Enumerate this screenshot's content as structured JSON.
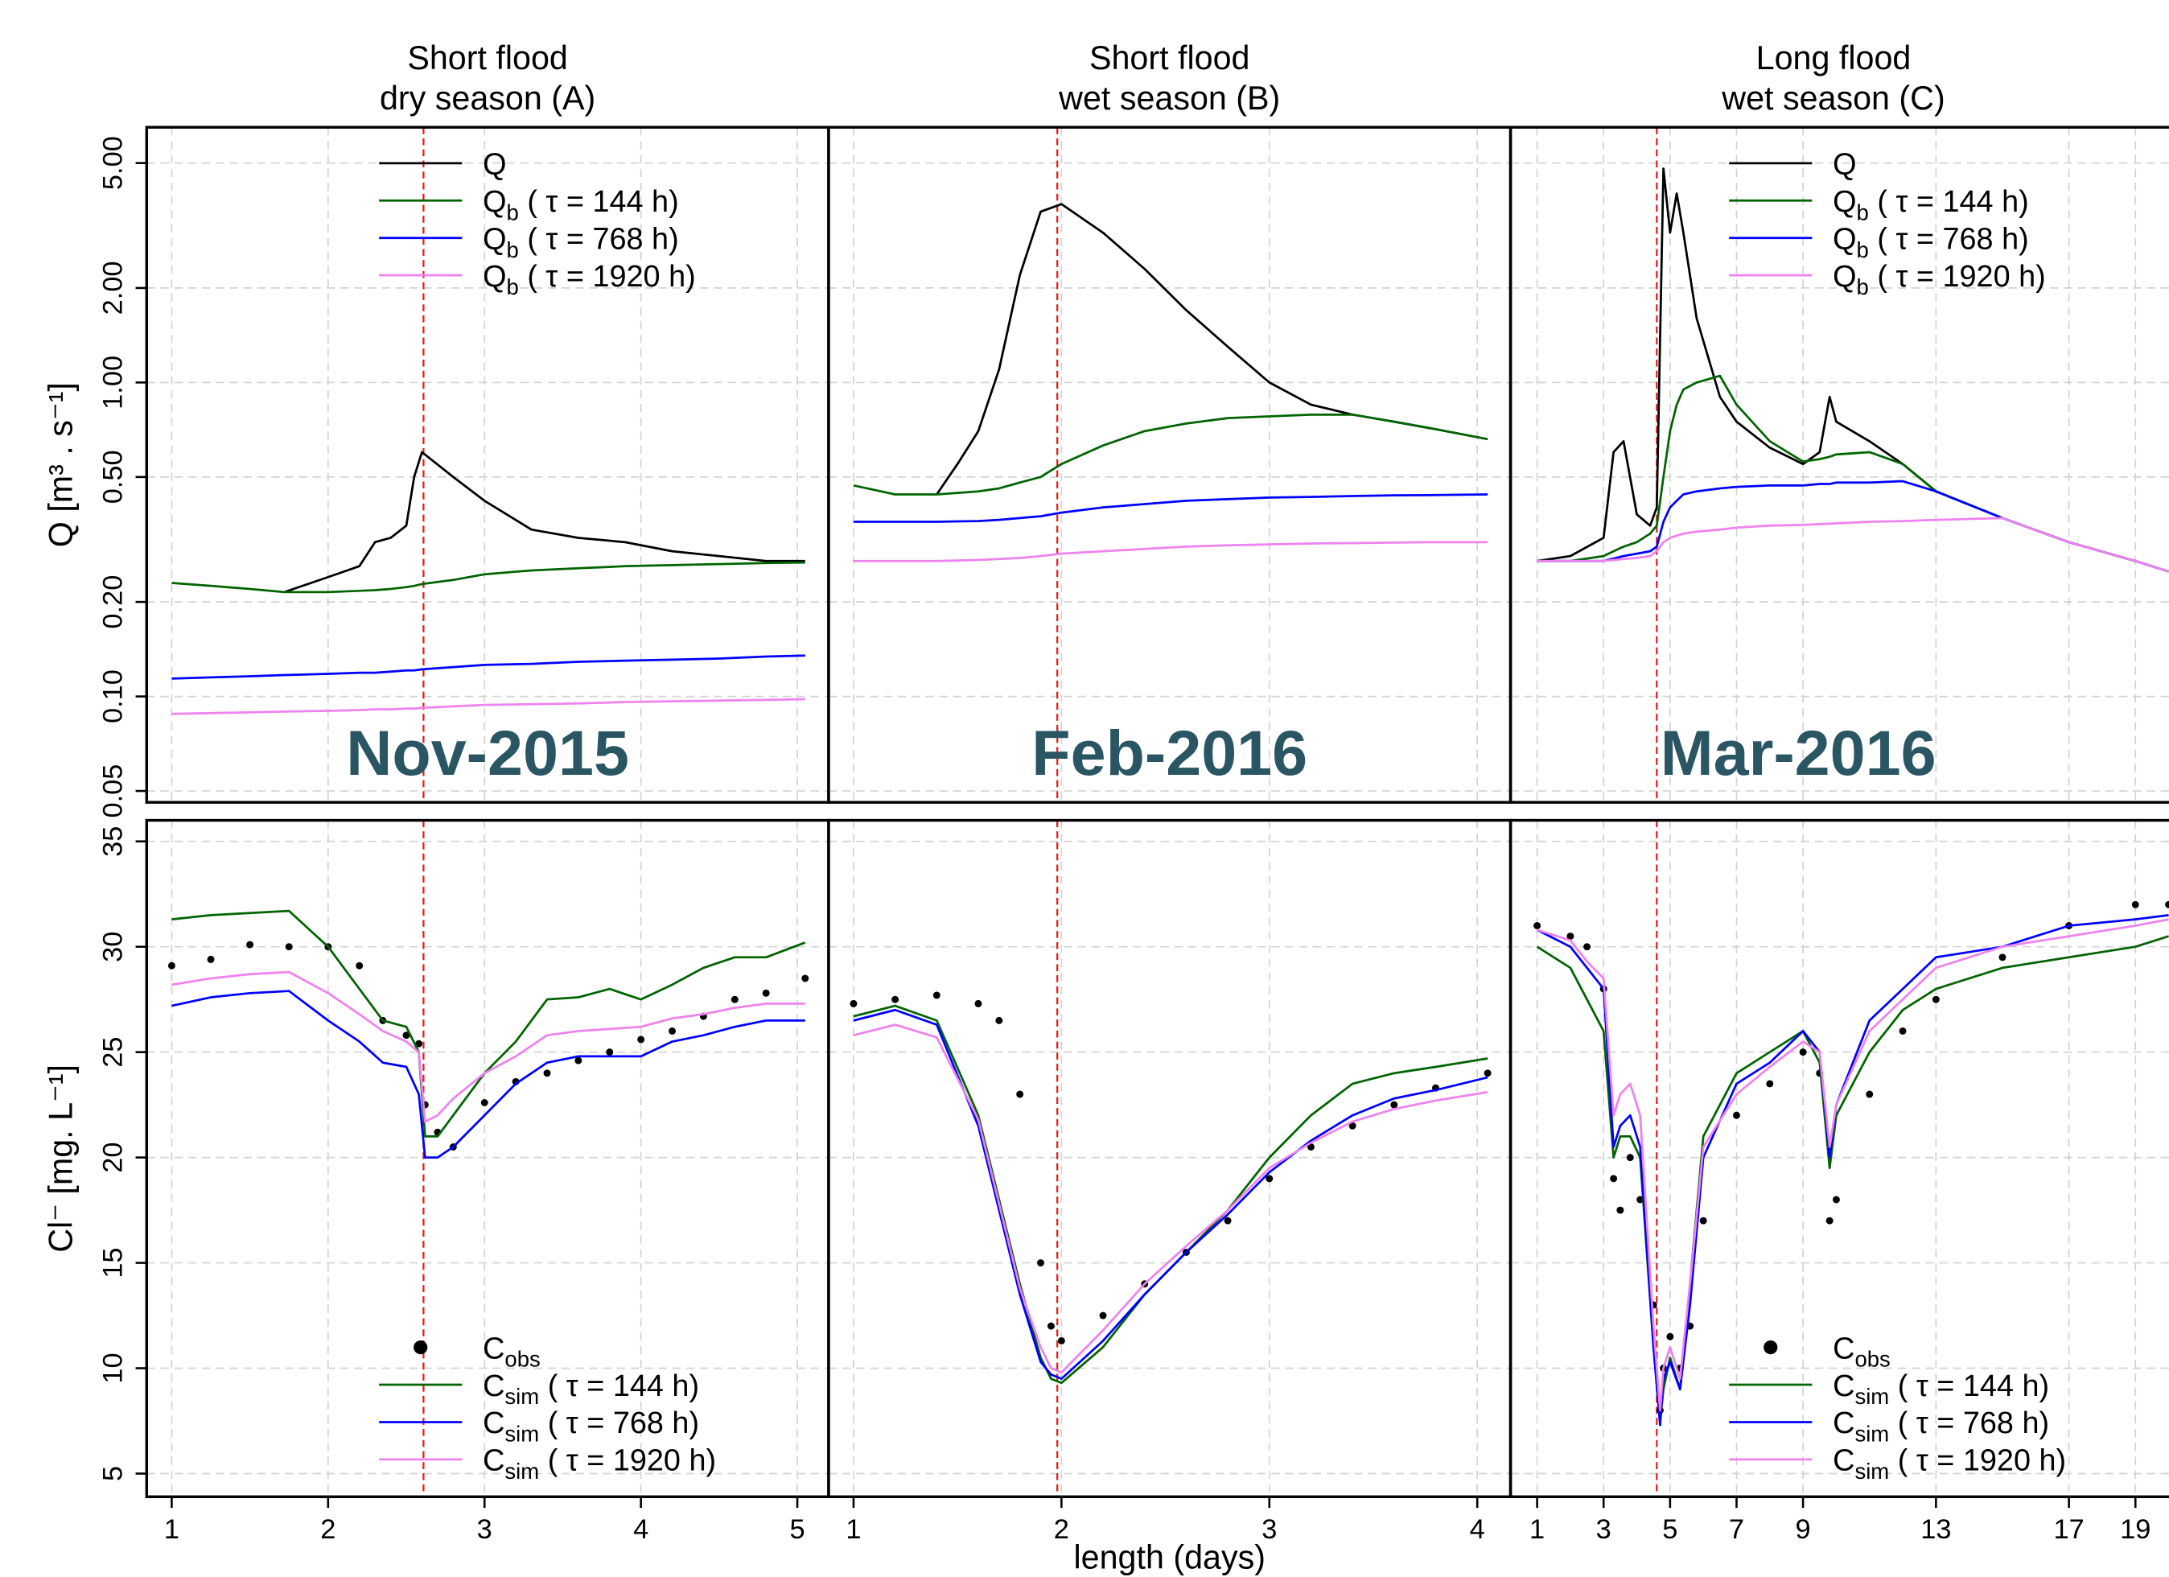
{
  "chart_data": [
    {
      "type": "line",
      "title": "Short flood",
      "subtitle": "dry season (A)",
      "annotation": "Nov-2015",
      "annotation_color": "#2a5563",
      "ylabel": "Q [m³ . s⁻¹]",
      "log_y": true,
      "grid": true,
      "legend": "top-right",
      "vline": 2.61,
      "vline_color": "#e41a1c",
      "xlim": [
        0.84,
        5.2
      ],
      "xticks": [
        1,
        2,
        3,
        4,
        5
      ],
      "xtick_labels": false,
      "ylim": [
        0.046,
        6.5
      ],
      "yticks": [
        0.05,
        {
          "value": 0.1,
          "label": "0.10"
        },
        {
          "value": 0.2,
          "label": "0.20"
        },
        {
          "value": 0.5,
          "label": "0.50"
        },
        {
          "value": 1,
          "label": "1.00"
        },
        {
          "value": 2,
          "label": "2.00"
        },
        {
          "value": 5,
          "label": "5.00"
        }
      ],
      "ytick_labels": true,
      "x": [
        1,
        1.25,
        1.5,
        1.72,
        2,
        2.2,
        2.3,
        2.4,
        2.5,
        2.55,
        2.6,
        2.8,
        3,
        3.3,
        3.6,
        3.9,
        4.2,
        4.5,
        4.8,
        5.05
      ],
      "series": [
        {
          "name": "Q",
          "color": "#000000",
          "values": [
            null,
            null,
            null,
            0.215,
            0.24,
            0.26,
            0.31,
            0.32,
            0.35,
            0.5,
            0.6,
            0.5,
            0.42,
            0.34,
            0.32,
            0.31,
            0.29,
            0.28,
            0.27,
            0.27
          ]
        },
        {
          "name": "Qb ( τ = 144 h)",
          "color": "#006400",
          "values": [
            0.23,
            0.225,
            0.22,
            0.215,
            0.215,
            0.217,
            0.218,
            0.22,
            0.223,
            0.225,
            0.228,
            0.235,
            0.245,
            0.252,
            0.256,
            0.26,
            0.262,
            0.264,
            0.266,
            0.267
          ]
        },
        {
          "name": "Qb ( τ = 768 h)",
          "color": "#0000ff",
          "values": [
            0.114,
            0.115,
            0.116,
            0.117,
            0.118,
            0.119,
            0.119,
            0.12,
            0.121,
            0.121,
            0.122,
            0.124,
            0.126,
            0.127,
            0.129,
            0.13,
            0.131,
            0.132,
            0.134,
            0.135
          ]
        },
        {
          "name": "Qb ( τ = 1920 h)",
          "color": "#ee82ee",
          "values": [
            0.088,
            0.0885,
            0.089,
            0.0895,
            0.09,
            0.0905,
            0.091,
            0.091,
            0.0915,
            0.0915,
            0.092,
            0.093,
            0.094,
            0.0945,
            0.095,
            0.096,
            0.0965,
            0.097,
            0.0975,
            0.098
          ]
        }
      ]
    },
    {
      "type": "line",
      "title": "Short flood",
      "subtitle": "wet season (B)",
      "annotation": "Feb-2016",
      "annotation_color": "#2a5563",
      "log_y": true,
      "grid": true,
      "legend": "none",
      "vline": 1.98,
      "vline_color": "#e41a1c",
      "xlim": [
        0.88,
        4.16
      ],
      "xticks": [
        1,
        2,
        3,
        4
      ],
      "xtick_labels": false,
      "ylim": [
        0.046,
        6.5
      ],
      "yticks": [
        0.05,
        0.1,
        0.2,
        0.5,
        1,
        2,
        5
      ],
      "ytick_labels": false,
      "x": [
        1,
        1.2,
        1.4,
        1.5,
        1.6,
        1.7,
        1.8,
        1.9,
        2,
        2.2,
        2.4,
        2.6,
        2.8,
        3,
        3.2,
        3.4,
        3.6,
        3.8,
        4.05
      ],
      "series": [
        {
          "name": "Q",
          "color": "#000000",
          "values": [
            null,
            null,
            0.44,
            0.55,
            0.7,
            1.1,
            2.2,
            3.5,
            3.7,
            3.0,
            2.3,
            1.7,
            1.3,
            1.0,
            0.85,
            0.79,
            0.75,
            0.71,
            0.66
          ]
        },
        {
          "name": "Qb ( τ = 144 h)",
          "color": "#006400",
          "values": [
            0.47,
            0.44,
            0.44,
            0.445,
            0.45,
            0.46,
            0.48,
            0.5,
            0.55,
            0.63,
            0.7,
            0.74,
            0.77,
            0.78,
            0.79,
            0.79,
            0.75,
            0.71,
            0.66
          ]
        },
        {
          "name": "Qb ( τ = 768 h)",
          "color": "#0000ff",
          "values": [
            0.36,
            0.36,
            0.36,
            0.361,
            0.362,
            0.365,
            0.37,
            0.375,
            0.385,
            0.4,
            0.41,
            0.42,
            0.425,
            0.43,
            0.432,
            0.435,
            0.437,
            0.438,
            0.44
          ]
        },
        {
          "name": "Qb ( τ = 1920 h)",
          "color": "#ee82ee",
          "values": [
            0.27,
            0.27,
            0.27,
            0.271,
            0.272,
            0.274,
            0.276,
            0.28,
            0.285,
            0.29,
            0.295,
            0.3,
            0.303,
            0.305,
            0.307,
            0.308,
            0.309,
            0.31,
            0.31
          ]
        }
      ]
    },
    {
      "type": "line",
      "title": "Long flood",
      "subtitle": "wet season (C)",
      "annotation": "Mar-2016",
      "annotation_color": "#2a5563",
      "log_y": true,
      "grid": true,
      "legend": "top-right",
      "vline": 4.6,
      "vline_color": "#e41a1c",
      "xlim": [
        0.2,
        20.3
      ],
      "xticks": [
        1,
        3,
        5,
        7,
        9,
        13,
        17,
        19
      ],
      "xtick_labels": false,
      "ylim": [
        0.046,
        6.5
      ],
      "yticks": [
        0.05,
        0.1,
        0.2,
        0.5,
        1,
        2,
        5
      ],
      "ytick_labels": false,
      "x": [
        1,
        2,
        3,
        3.3,
        3.6,
        4,
        4.4,
        4.6,
        4.8,
        5,
        5.2,
        5.4,
        5.8,
        6.5,
        7,
        8,
        9,
        9.5,
        9.8,
        10,
        11,
        12,
        13,
        15,
        17,
        19,
        20
      ],
      "series": [
        {
          "name": "Q",
          "color": "#000000",
          "values": [
            0.27,
            0.28,
            0.32,
            0.6,
            0.65,
            0.38,
            0.35,
            0.4,
            4.8,
            3,
            4,
            3,
            1.6,
            0.9,
            0.75,
            0.62,
            0.55,
            0.6,
            0.9,
            0.75,
            0.65,
            0.55,
            0.45,
            0.37,
            0.31,
            0.27,
            0.25
          ]
        },
        {
          "name": "Qb ( τ = 144 h)",
          "color": "#006400",
          "values": [
            0.27,
            0.27,
            0.28,
            0.29,
            0.3,
            0.31,
            0.33,
            0.35,
            0.5,
            0.7,
            0.85,
            0.95,
            1.0,
            1.05,
            0.85,
            0.65,
            0.56,
            0.57,
            0.58,
            0.59,
            0.6,
            0.55,
            0.45,
            0.37,
            0.31,
            0.27,
            0.25
          ]
        },
        {
          "name": "Qb ( τ = 768 h)",
          "color": "#0000ff",
          "values": [
            0.27,
            0.27,
            0.27,
            0.275,
            0.28,
            0.285,
            0.29,
            0.3,
            0.36,
            0.4,
            0.42,
            0.44,
            0.45,
            0.46,
            0.465,
            0.47,
            0.47,
            0.475,
            0.475,
            0.48,
            0.48,
            0.485,
            0.45,
            0.37,
            0.31,
            0.27,
            0.25
          ]
        },
        {
          "name": "Qb ( τ = 1920 h)",
          "color": "#ee82ee",
          "values": [
            0.27,
            0.27,
            0.27,
            0.272,
            0.274,
            0.276,
            0.28,
            0.29,
            0.31,
            0.32,
            0.325,
            0.33,
            0.335,
            0.34,
            0.345,
            0.35,
            0.352,
            0.354,
            0.355,
            0.356,
            0.36,
            0.362,
            0.365,
            0.37,
            0.31,
            0.27,
            0.25
          ]
        }
      ]
    },
    {
      "type": "line",
      "ylabel": "Cl⁻ [mg. L⁻¹]",
      "log_y": false,
      "grid": true,
      "legend": "bottom-right",
      "vline": 2.61,
      "vline_color": "#e41a1c",
      "xlim": [
        0.84,
        5.2
      ],
      "xticks": [
        1,
        2,
        3,
        4,
        5
      ],
      "xtick_labels": true,
      "ylim": [
        3.9,
        36
      ],
      "yticks": [
        5,
        10,
        15,
        20,
        25,
        30,
        35
      ],
      "ytick_labels": true,
      "x": [
        1,
        1.25,
        1.5,
        1.75,
        2,
        2.2,
        2.35,
        2.5,
        2.58,
        2.62,
        2.7,
        2.8,
        3,
        3.2,
        3.4,
        3.6,
        3.8,
        4,
        4.2,
        4.4,
        4.6,
        4.8,
        5.05
      ],
      "series": [
        {
          "name": "Cobs",
          "color": "#000000",
          "style": "points",
          "values": [
            29.1,
            29.4,
            30.1,
            30,
            30,
            29.1,
            26.5,
            25.8,
            25.4,
            22.5,
            21.2,
            20.5,
            22.6,
            23.6,
            24,
            24.6,
            25,
            25.6,
            26,
            26.7,
            27.5,
            27.8,
            28.5
          ]
        },
        {
          "name": "Csim ( τ = 144 h)",
          "color": "#006400",
          "values": [
            31.3,
            31.5,
            31.6,
            31.7,
            30,
            28,
            26.5,
            26.2,
            25,
            21,
            21,
            22,
            24,
            25.5,
            27.5,
            27.6,
            28,
            27.5,
            28.2,
            29,
            29.5,
            29.5,
            30.2
          ]
        },
        {
          "name": "Csim ( τ = 768 h)",
          "color": "#0000ff",
          "values": [
            27.2,
            27.6,
            27.8,
            27.9,
            26.5,
            25.5,
            24.5,
            24.3,
            23,
            20,
            20,
            20.5,
            22,
            23.5,
            24.5,
            24.8,
            24.8,
            24.8,
            25.5,
            25.8,
            26.2,
            26.5,
            26.5
          ]
        },
        {
          "name": "Csim ( τ = 1920 h)",
          "color": "#ee82ee",
          "values": [
            28.2,
            28.5,
            28.7,
            28.8,
            27.8,
            26.8,
            26,
            25.5,
            25,
            21.7,
            22,
            22.8,
            24,
            24.8,
            25.8,
            26,
            26.1,
            26.2,
            26.6,
            26.8,
            27.1,
            27.3,
            27.3
          ]
        }
      ]
    },
    {
      "type": "line",
      "xlabel": "length (days)",
      "log_y": false,
      "grid": true,
      "legend": "none",
      "vline": 1.98,
      "vline_color": "#e41a1c",
      "xlim": [
        0.88,
        4.16
      ],
      "xticks": [
        1,
        2,
        3,
        4
      ],
      "xtick_labels": true,
      "ylim": [
        3.9,
        36
      ],
      "yticks": [
        5,
        10,
        15,
        20,
        25,
        30,
        35
      ],
      "ytick_labels": false,
      "x": [
        1,
        1.2,
        1.4,
        1.6,
        1.7,
        1.8,
        1.9,
        1.95,
        2,
        2.2,
        2.4,
        2.6,
        2.8,
        3,
        3.2,
        3.4,
        3.6,
        3.8,
        4.05
      ],
      "series": [
        {
          "name": "Cobs",
          "color": "#000000",
          "style": "points",
          "values": [
            27.3,
            27.5,
            27.7,
            27.3,
            26.5,
            23,
            15,
            12,
            11.3,
            12.5,
            14,
            15.5,
            17,
            19,
            20.5,
            21.5,
            22.5,
            23.3,
            24
          ]
        },
        {
          "name": "Csim ( τ = 144 h)",
          "color": "#006400",
          "values": [
            26.7,
            27.2,
            26.5,
            22,
            18,
            14,
            10.5,
            9.5,
            9.3,
            11,
            13.5,
            15.5,
            17.5,
            20,
            22,
            23.5,
            24,
            24.3,
            24.7
          ]
        },
        {
          "name": "Csim ( τ = 768 h)",
          "color": "#0000ff",
          "values": [
            26.5,
            27,
            26.3,
            21.5,
            17.5,
            13.5,
            10.3,
            9.7,
            9.5,
            11.3,
            13.5,
            15.5,
            17.3,
            19.3,
            20.8,
            22,
            22.8,
            23.2,
            23.8
          ]
        },
        {
          "name": "Csim ( τ = 1920 h)",
          "color": "#ee82ee",
          "values": [
            25.8,
            26.3,
            25.7,
            21.8,
            17.8,
            13.8,
            11,
            10,
            9.8,
            11.8,
            14,
            15.8,
            17.5,
            19.5,
            20.7,
            21.7,
            22.3,
            22.7,
            23.1
          ]
        }
      ]
    },
    {
      "type": "line",
      "log_y": false,
      "grid": true,
      "legend": "bottom-right",
      "vline": 4.6,
      "vline_color": "#e41a1c",
      "xlim": [
        0.2,
        20.3
      ],
      "xticks": [
        1,
        3,
        5,
        7,
        9,
        13,
        17,
        19
      ],
      "xtick_labels": true,
      "ylim": [
        3.9,
        36
      ],
      "yticks": [
        5,
        10,
        15,
        20,
        25,
        30,
        35
      ],
      "ytick_labels": false,
      "x": [
        1,
        2,
        2.5,
        3,
        3.3,
        3.5,
        3.8,
        4.1,
        4.5,
        4.7,
        4.8,
        5,
        5.3,
        5.6,
        6,
        7,
        8,
        9,
        9.5,
        9.8,
        10,
        11,
        12,
        13,
        15,
        17,
        19,
        20
      ],
      "series": [
        {
          "name": "Cobs",
          "color": "#000000",
          "style": "points",
          "values": [
            31,
            30.5,
            30,
            28,
            19,
            17.5,
            20,
            18,
            13,
            8,
            10,
            11.5,
            10,
            12,
            17,
            22,
            23.5,
            25,
            24,
            17,
            18,
            23,
            26,
            27.5,
            29.5,
            31,
            32,
            32
          ]
        },
        {
          "name": "Csim ( τ = 144 h)",
          "color": "#006400",
          "values": [
            30,
            29,
            27.5,
            26,
            20,
            21,
            21,
            20,
            11,
            7.5,
            9,
            10.5,
            9,
            14,
            21,
            24,
            25,
            26,
            24.5,
            19.5,
            22,
            25,
            27,
            28,
            29,
            29.5,
            30,
            30.5
          ]
        },
        {
          "name": "Csim ( τ = 768 h)",
          "color": "#0000ff",
          "values": [
            30.8,
            30,
            29,
            28,
            20.5,
            21.5,
            22,
            20.5,
            11,
            7.3,
            9.5,
            10.3,
            9,
            13,
            20,
            23.5,
            24.5,
            26,
            25,
            20,
            22.5,
            26.5,
            28,
            29.5,
            30,
            31,
            31.3,
            31.5
          ]
        },
        {
          "name": "Csim ( τ = 1920 h)",
          "color": "#ee82ee",
          "values": [
            30.8,
            30.3,
            29.3,
            28.5,
            22,
            23,
            23.5,
            22,
            12,
            8,
            10,
            11,
            9.5,
            14,
            20.5,
            23,
            24.3,
            25.5,
            25,
            20.5,
            22.5,
            26,
            27.5,
            29,
            30,
            30.5,
            31,
            31.3
          ]
        }
      ]
    }
  ]
}
